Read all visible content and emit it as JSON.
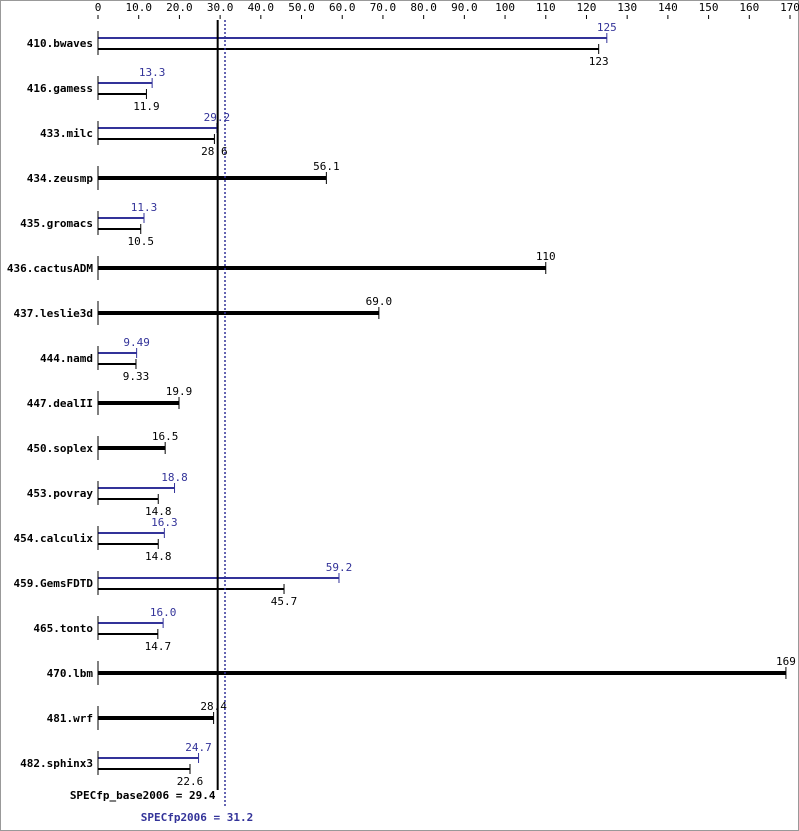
{
  "chart_data": {
    "type": "bar",
    "orientation": "horizontal",
    "categories": [
      "410.bwaves",
      "416.gamess",
      "433.milc",
      "434.zeusmp",
      "435.gromacs",
      "436.cactusADM",
      "437.leslie3d",
      "444.namd",
      "447.dealII",
      "450.soplex",
      "453.povray",
      "454.calculix",
      "459.GemsFDTD",
      "465.tonto",
      "470.lbm",
      "481.wrf",
      "482.sphinx3"
    ],
    "series": [
      {
        "color": "#333399",
        "values": [
          125,
          13.3,
          29.2,
          null,
          11.3,
          null,
          null,
          9.49,
          null,
          null,
          18.8,
          16.3,
          59.2,
          16.0,
          null,
          null,
          24.7
        ],
        "value_labels": [
          "125",
          "13.3",
          "29.2",
          null,
          "11.3",
          null,
          null,
          "9.49",
          null,
          null,
          "18.8",
          "16.3",
          "59.2",
          "16.0",
          null,
          null,
          "24.7"
        ]
      },
      {
        "color": "#000000",
        "values": [
          123,
          11.9,
          28.6,
          56.1,
          10.5,
          110,
          69.0,
          9.33,
          19.9,
          16.5,
          14.8,
          14.8,
          45.7,
          14.7,
          169,
          28.4,
          22.6
        ],
        "value_labels": [
          "123",
          "11.9",
          "28.6",
          "56.1",
          "10.5",
          "110",
          "69.0",
          "9.33",
          "19.9",
          "16.5",
          "14.8",
          "14.8",
          "45.7",
          "14.7",
          "169",
          "28.4",
          "22.6"
        ]
      }
    ],
    "xlim": [
      0,
      170
    ],
    "xticks": [
      0,
      {
        "value": 10,
        "label": "10.0"
      },
      {
        "value": 20,
        "label": "20.0"
      },
      {
        "value": 30,
        "label": "30.0"
      },
      {
        "value": 40,
        "label": "40.0"
      },
      {
        "value": 50,
        "label": "50.0"
      },
      {
        "value": 60,
        "label": "60.0"
      },
      {
        "value": 70,
        "label": "70.0"
      },
      {
        "value": 80,
        "label": "80.0"
      },
      {
        "value": 90,
        "label": "90.0"
      },
      100,
      110,
      120,
      130,
      140,
      150,
      160,
      170
    ],
    "reference_lines": [
      {
        "label": "SPECfp_base2006 = 29.4",
        "value": 29.4,
        "color": "#000000",
        "style": "solid"
      },
      {
        "label": "SPECfp2006 = 31.2",
        "value": 31.2,
        "color": "#333399",
        "style": "dotted"
      }
    ]
  }
}
